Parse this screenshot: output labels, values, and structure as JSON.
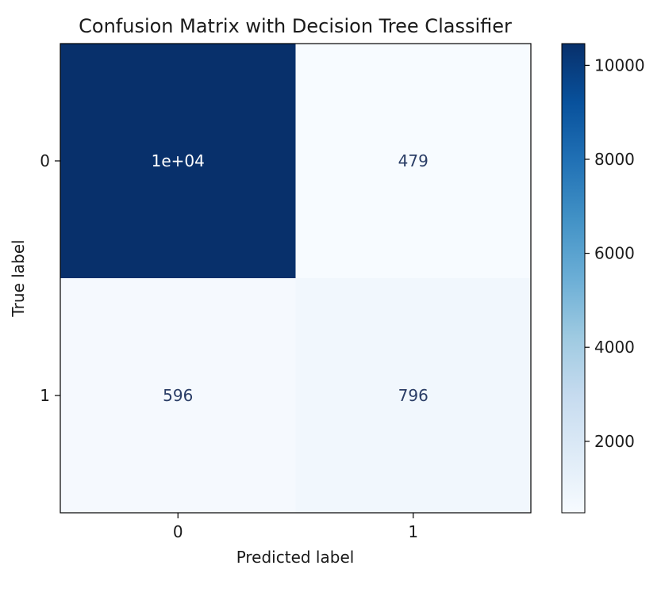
{
  "chart_data": {
    "type": "heatmap",
    "title": "Confusion Matrix with Decision Tree Classifier",
    "xlabel": "Predicted label",
    "ylabel": "True label",
    "x_categories": [
      "0",
      "1"
    ],
    "y_categories": [
      "0",
      "1"
    ],
    "values": [
      [
        10462,
        479
      ],
      [
        596,
        796
      ]
    ],
    "cell_labels": [
      [
        "1e+04",
        "479"
      ],
      [
        "596",
        "796"
      ]
    ],
    "colormap": "Blues",
    "colorbar": {
      "ticks": [
        2000,
        4000,
        6000,
        8000,
        10000
      ],
      "range": [
        479,
        10462
      ]
    },
    "colors": {
      "dark": "#08306b",
      "light": "#f7fbff",
      "dark_text": "#2a3d66",
      "light_text": "#ffffff"
    }
  }
}
